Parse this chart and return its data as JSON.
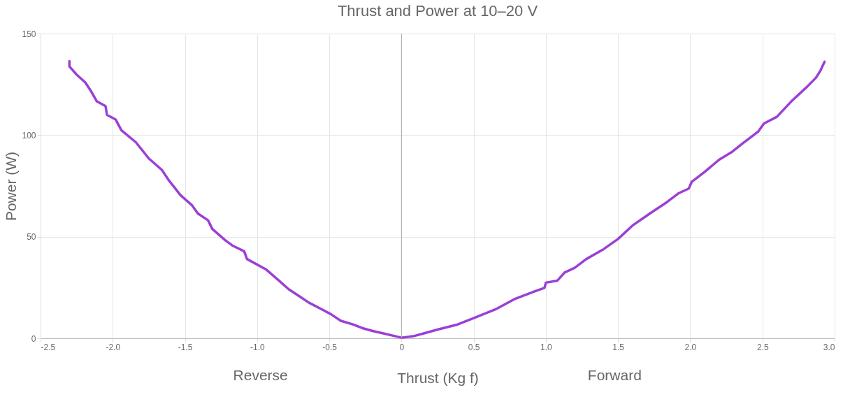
{
  "chart_data": {
    "type": "line",
    "title": "Thrust and Power at 10–20 V",
    "xlabel": "Thrust (Kg f)",
    "ylabel": "Power (W)",
    "annotations": [
      "Reverse",
      "Forward"
    ],
    "x": [
      -2.3,
      -2.3,
      -2.25,
      -2.19,
      -2.15,
      -2.11,
      -2.05,
      -2.04,
      -1.98,
      -1.94,
      -1.84,
      -1.75,
      -1.66,
      -1.61,
      -1.53,
      -1.45,
      -1.41,
      -1.34,
      -1.31,
      -1.22,
      -1.17,
      -1.09,
      -1.07,
      -0.94,
      -0.87,
      -0.78,
      -0.71,
      -0.64,
      -0.55,
      -0.49,
      -0.42,
      -0.34,
      -0.27,
      -0.2,
      -0.12,
      -0.04,
      0,
      0.08,
      0.15,
      0.25,
      0.38,
      0.5,
      0.65,
      0.78,
      0.9,
      0.99,
      1.0,
      1.08,
      1.13,
      1.2,
      1.28,
      1.4,
      1.5,
      1.6,
      1.72,
      1.84,
      1.92,
      1.99,
      2.01,
      2.1,
      2.2,
      2.29,
      2.36,
      2.47,
      2.51,
      2.6,
      2.7,
      2.8,
      2.87,
      2.9,
      2.93
    ],
    "series": [
      {
        "color": "#9b3fd6",
        "values": [
          136.4,
          133.8,
          129.8,
          125.9,
          121.6,
          116.6,
          114.3,
          110,
          107.7,
          102.4,
          96.5,
          88.5,
          82.9,
          77.6,
          70.4,
          65.4,
          61.4,
          58.1,
          53.8,
          48.2,
          45.6,
          42.9,
          39,
          34,
          29.7,
          24.1,
          20.8,
          17.5,
          14.2,
          11.9,
          8.6,
          6.9,
          5,
          3.6,
          2.3,
          1,
          0.3,
          1,
          2.3,
          4.3,
          6.6,
          9.9,
          14.2,
          19.2,
          22.5,
          24.8,
          27.4,
          28.4,
          32.4,
          34.7,
          39,
          43.9,
          48.9,
          55.5,
          61.4,
          67.1,
          71.4,
          73.7,
          77,
          81.9,
          87.9,
          91.8,
          95.8,
          101.7,
          105.7,
          109,
          116.6,
          123.2,
          128.2,
          131.5,
          136.1
        ]
      }
    ],
    "xlim": [
      -2.5,
      3.0
    ],
    "xticks": [
      -2.5,
      {
        "value": -2,
        "label": "-2.0"
      },
      -1.5,
      {
        "value": -1,
        "label": "-1.0"
      },
      -0.5,
      0,
      0.5,
      {
        "value": 1,
        "label": "1.0"
      },
      1.5,
      {
        "value": 2,
        "label": "2.0"
      },
      2.5,
      {
        "value": 3,
        "label": "3.0"
      }
    ],
    "ylim": [
      0,
      150
    ],
    "yticks": [
      0,
      50,
      100,
      150
    ],
    "ref_lines": [
      {
        "axis": "x",
        "value": 0,
        "color": "#aaaaaa"
      }
    ],
    "grid": true,
    "marker": "none",
    "line_style": "solid"
  }
}
